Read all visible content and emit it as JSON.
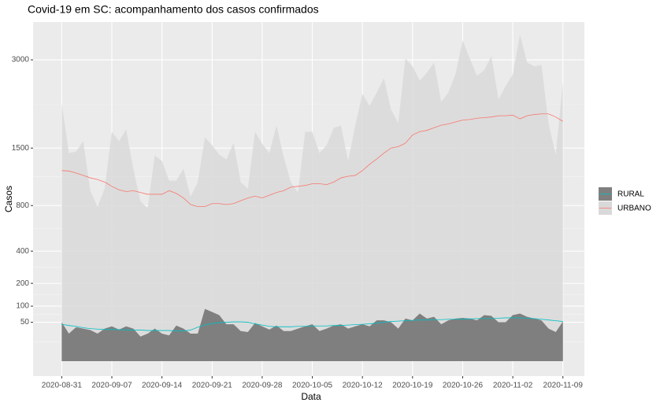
{
  "chart_data": {
    "type": "area",
    "title": "Covid-19 em SC: acompanhamento dos casos confirmados",
    "x_label": "Data",
    "y_label": "Casos",
    "y_scale": "sqrt",
    "grid": true,
    "legend_position": "right",
    "x": [
      "2020-08-31",
      "2020-09-01",
      "2020-09-02",
      "2020-09-03",
      "2020-09-04",
      "2020-09-05",
      "2020-09-06",
      "2020-09-07",
      "2020-09-08",
      "2020-09-09",
      "2020-09-10",
      "2020-09-11",
      "2020-09-12",
      "2020-09-13",
      "2020-09-14",
      "2020-09-15",
      "2020-09-16",
      "2020-09-17",
      "2020-09-18",
      "2020-09-19",
      "2020-09-20",
      "2020-09-21",
      "2020-09-22",
      "2020-09-23",
      "2020-09-24",
      "2020-09-25",
      "2020-09-26",
      "2020-09-27",
      "2020-09-28",
      "2020-09-29",
      "2020-09-30",
      "2020-10-01",
      "2020-10-02",
      "2020-10-03",
      "2020-10-04",
      "2020-10-05",
      "2020-10-06",
      "2020-10-07",
      "2020-10-08",
      "2020-10-09",
      "2020-10-10",
      "2020-10-11",
      "2020-10-12",
      "2020-10-13",
      "2020-10-14",
      "2020-10-15",
      "2020-10-16",
      "2020-10-17",
      "2020-10-18",
      "2020-10-19",
      "2020-10-20",
      "2020-10-21",
      "2020-10-22",
      "2020-10-23",
      "2020-10-24",
      "2020-10-25",
      "2020-10-26",
      "2020-10-27",
      "2020-10-28",
      "2020-10-29",
      "2020-10-30",
      "2020-10-31",
      "2020-11-01",
      "2020-11-02",
      "2020-11-03",
      "2020-11-04",
      "2020-11-05",
      "2020-11-06",
      "2020-11-07",
      "2020-11-08",
      "2020-11-09"
    ],
    "xlim": [
      "2020-08-27",
      "2020-11-12"
    ],
    "xticks": [
      "2020-08-31",
      "2020-09-07",
      "2020-09-14",
      "2020-09-21",
      "2020-09-28",
      "2020-10-05",
      "2020-10-12",
      "2020-10-19",
      "2020-10-26",
      "2020-11-02",
      "2020-11-09"
    ],
    "ylim": [
      0,
      3800
    ],
    "yticks": [
      50,
      100,
      200,
      400,
      800,
      1500,
      3000
    ],
    "series": [
      {
        "name": "RURAL",
        "color": "#7f7f7f",
        "trend_color": "#00bfc4",
        "values": [
          50,
          25,
          38,
          35,
          32,
          25,
          35,
          40,
          33,
          40,
          35,
          20,
          25,
          35,
          25,
          22,
          42,
          35,
          25,
          25,
          90,
          80,
          70,
          45,
          45,
          30,
          28,
          48,
          40,
          33,
          42,
          30,
          30,
          35,
          40,
          45,
          30,
          35,
          42,
          45,
          35,
          40,
          45,
          40,
          55,
          55,
          50,
          35,
          60,
          55,
          75,
          60,
          65,
          45,
          55,
          60,
          62,
          60,
          55,
          70,
          68,
          50,
          50,
          70,
          75,
          65,
          60,
          55,
          35,
          28,
          52
        ],
        "trend": [
          45,
          42,
          40,
          37,
          35,
          34,
          33,
          33,
          33,
          32,
          32,
          32,
          31,
          31,
          31,
          31,
          30,
          30,
          32,
          38,
          43,
          47,
          49,
          50,
          51,
          51,
          50,
          46,
          43,
          40,
          39,
          39,
          39,
          40,
          40,
          41,
          41,
          41,
          42,
          42,
          43,
          44,
          45,
          46,
          48,
          50,
          52,
          53,
          54,
          55,
          56,
          56,
          57,
          57,
          58,
          58,
          59,
          59,
          60,
          60,
          60,
          61,
          62,
          62,
          62,
          61,
          60,
          58,
          56,
          54,
          52
        ]
      },
      {
        "name": "URBANO",
        "color": "#d9d9d9",
        "trend_color": "#f8766d",
        "values": [
          2195,
          1430,
          1452,
          1598,
          957,
          789,
          985,
          1738,
          1598,
          1774,
          1222,
          846,
          772,
          1398,
          1324,
          1076,
          1076,
          1222,
          896,
          1058,
          1655,
          1540,
          1409,
          1345,
          1574,
          1058,
          985,
          1738,
          1563,
          1430,
          1835,
          1377,
          1058,
          940,
          1738,
          1738,
          1430,
          1540,
          1798,
          1835,
          1324,
          1835,
          2359,
          2155,
          2386,
          2645,
          2089,
          1872,
          3026,
          2871,
          2601,
          2750,
          2949,
          2222,
          2386,
          2719,
          3400,
          3026,
          2690,
          2796,
          3073,
          2263,
          2500,
          2719,
          3517,
          2949,
          2871,
          2902,
          1860,
          1409,
          2572
        ],
        "trend": [
          1200,
          1195,
          1170,
          1140,
          1110,
          1090,
          1060,
          1010,
          970,
          950,
          960,
          940,
          920,
          920,
          920,
          960,
          930,
          880,
          810,
          790,
          790,
          820,
          820,
          810,
          820,
          850,
          880,
          900,
          880,
          910,
          940,
          960,
          1000,
          1010,
          1020,
          1040,
          1040,
          1030,
          1060,
          1110,
          1130,
          1140,
          1200,
          1280,
          1350,
          1430,
          1500,
          1520,
          1570,
          1690,
          1740,
          1760,
          1800,
          1840,
          1860,
          1890,
          1920,
          1930,
          1950,
          1960,
          1970,
          1990,
          1990,
          2000,
          1940,
          1990,
          2010,
          2020,
          2020,
          1970,
          1900
        ]
      }
    ]
  }
}
